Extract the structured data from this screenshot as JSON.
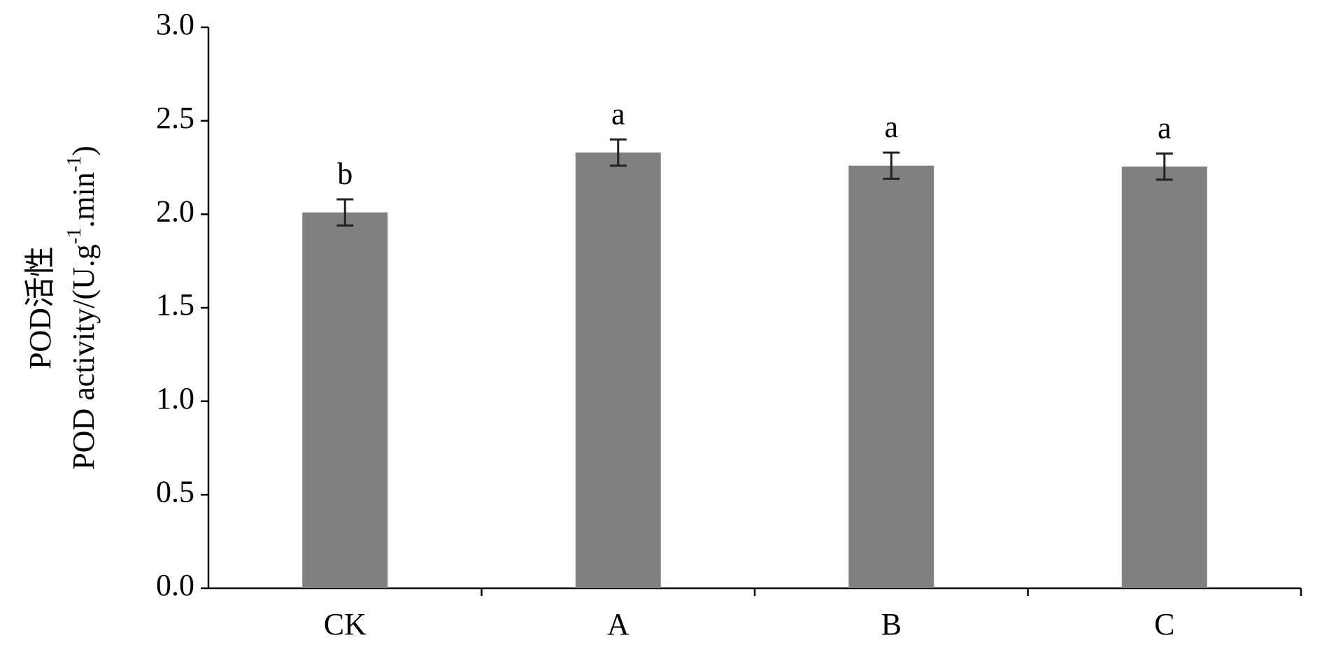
{
  "chart_data": {
    "type": "bar",
    "ylabel": {
      "line1": "POD活性",
      "line2": [
        {
          "text": "POD activity/(U.g"
        },
        {
          "sup": "-1"
        },
        {
          "text": ".min"
        },
        {
          "sup": "-1"
        },
        {
          "text": ")"
        }
      ]
    },
    "categories": [
      "CK",
      "A",
      "B",
      "C"
    ],
    "values": [
      2.01,
      2.33,
      2.26,
      2.255
    ],
    "errors": [
      0.07,
      0.07,
      0.07,
      0.07
    ],
    "significance": [
      "b",
      "a",
      "a",
      "a"
    ],
    "color": "#808080",
    "error_color": "#222222",
    "ylim": [
      0,
      3
    ],
    "yticks": [
      {
        "value": 0,
        "label": "0.0"
      },
      {
        "value": 0.5,
        "label": "0.5"
      },
      {
        "value": 1,
        "label": "1.0"
      },
      {
        "value": 1.5,
        "label": "1.5"
      },
      {
        "value": 2,
        "label": "2.0"
      },
      {
        "value": 2.5,
        "label": "2.5"
      },
      {
        "value": 3,
        "label": "3.0"
      }
    ],
    "grid": false
  }
}
